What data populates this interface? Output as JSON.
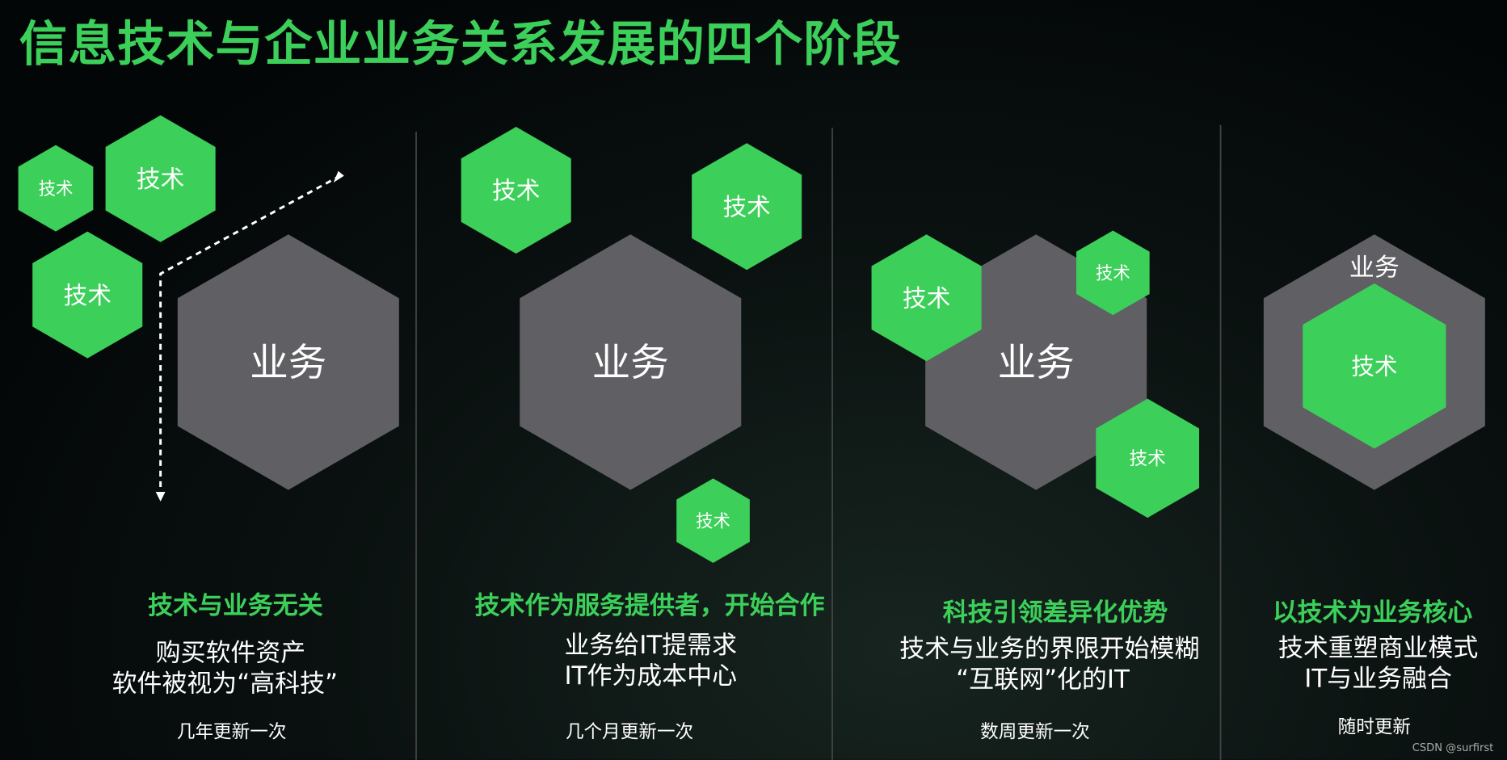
{
  "title": "信息技术与企业业务关系发展的四个阶段",
  "colors": {
    "accent": "#3ccf5a",
    "business": "#5f5f64",
    "background": "#030607"
  },
  "hex_labels": {
    "tech": "技术",
    "business": "业务"
  },
  "stages": [
    {
      "heading": "技术与业务无关",
      "lines": [
        "购买软件资产",
        "软件被视为“高科技”"
      ],
      "frequency": "几年更新一次"
    },
    {
      "heading": "技术作为服务提供者，开始合作",
      "lines": [
        "业务给IT提需求",
        "IT作为成本中心"
      ],
      "frequency": "几个月更新一次"
    },
    {
      "heading": "科技引领差异化优势",
      "lines": [
        "技术与业务的界限开始模糊",
        "“互联网”化的IT"
      ],
      "frequency": "数周更新一次"
    },
    {
      "heading": "以技术为业务核心",
      "lines": [
        "技术重塑商业模式",
        "IT与业务融合"
      ],
      "frequency": "随时更新"
    }
  ],
  "watermark": "CSDN @surfirst"
}
